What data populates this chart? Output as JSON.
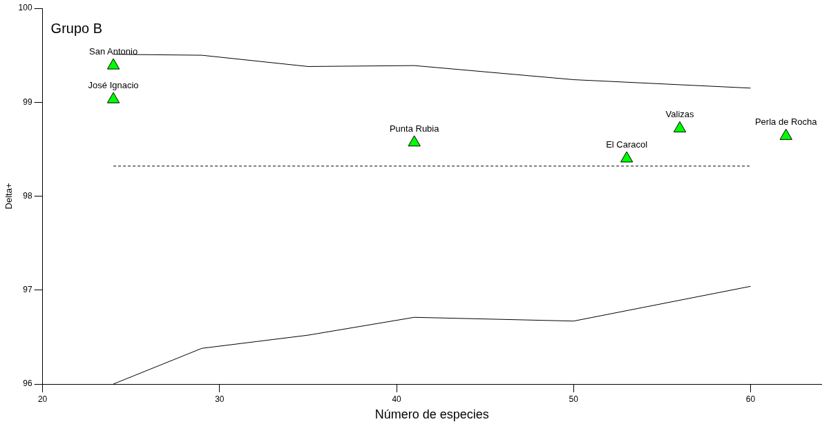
{
  "chart_data": {
    "type": "scatter",
    "title": "Grupo B",
    "xlabel": "Número de especies",
    "ylabel": "Delta+",
    "xlim": [
      20,
      64
    ],
    "xticks": [
      20,
      30,
      40,
      50,
      60
    ],
    "ylim": [
      96,
      100
    ],
    "yticks": [
      96,
      97,
      98,
      99,
      100
    ],
    "grid": false,
    "legend": false,
    "series": [
      {
        "type": "line",
        "color": "#000000",
        "marker": "none",
        "line_style": "solid",
        "x": [
          24,
          29,
          35,
          41,
          50,
          60
        ],
        "values": [
          99.51,
          99.5,
          99.38,
          99.39,
          99.24,
          99.15
        ]
      },
      {
        "type": "line",
        "color": "#000000",
        "marker": "none",
        "line_style": "solid",
        "x": [
          24,
          29,
          35,
          41,
          50,
          60
        ],
        "values": [
          96.0,
          96.38,
          96.52,
          96.71,
          96.67,
          97.04
        ]
      },
      {
        "type": "line",
        "color": "#000000",
        "marker": "none",
        "line_style": "dashed",
        "x": [
          24,
          60
        ],
        "values": [
          98.32,
          98.32
        ]
      },
      {
        "color": "#00ff00",
        "marker": "triangle",
        "x": [
          24,
          24,
          41,
          53,
          56,
          62
        ],
        "values": [
          99.39,
          99.03,
          98.57,
          98.4,
          98.72,
          98.64
        ]
      }
    ],
    "annotations": [
      {
        "text": "San Antonio",
        "x": 24,
        "y": 99.39
      },
      {
        "text": "José Ignacio",
        "x": 24,
        "y": 99.03
      },
      {
        "text": "Punta Rubia",
        "x": 41,
        "y": 98.57
      },
      {
        "text": "El Caracol",
        "x": 53,
        "y": 98.4
      },
      {
        "text": "Valizas",
        "x": 56,
        "y": 98.72
      },
      {
        "text": "Perla de Rocha",
        "x": 62,
        "y": 98.64
      }
    ]
  }
}
